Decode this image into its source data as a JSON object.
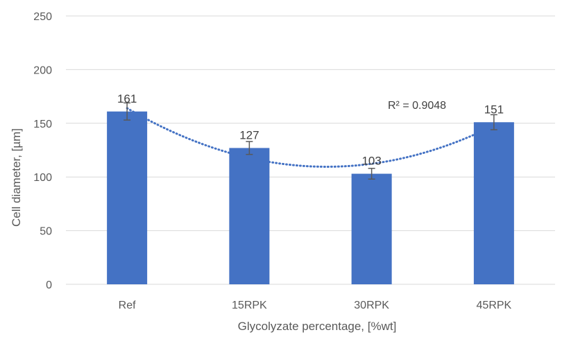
{
  "chart_data": {
    "type": "bar",
    "categories": [
      "Ref",
      "15RPK",
      "30RPK",
      "45RPK"
    ],
    "values": [
      161,
      127,
      103,
      151
    ],
    "error": [
      8,
      6,
      5,
      7
    ],
    "data_labels": [
      "161",
      "127",
      "103",
      "151"
    ],
    "xlabel": "Glycolyzate percentage, [%wt]",
    "ylabel": "Cell diameter, [µm]",
    "ylim": [
      0,
      250
    ],
    "yticks": [
      0,
      50,
      100,
      150,
      200,
      250
    ],
    "ytick_labels": [
      "0",
      "50",
      "100",
      "150",
      "200",
      "250"
    ],
    "grid": true,
    "trendline": {
      "type": "polynomial",
      "order": 2,
      "style": "dotted",
      "label": "R² = 0.9048"
    },
    "colors": {
      "bar": "#4472C4",
      "trendline": "#4472C4",
      "error_bar": "#595959",
      "grid": "#D9D9D9"
    }
  }
}
